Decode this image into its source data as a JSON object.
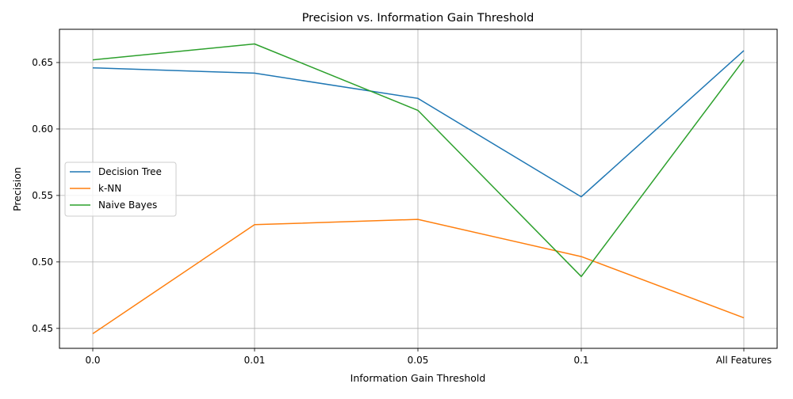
{
  "chart_data": {
    "type": "line",
    "title": "Precision vs. Information Gain Threshold",
    "xlabel": "Information Gain Threshold",
    "ylabel": "Precision",
    "categories": [
      "0.0",
      "0.01",
      "0.05",
      "0.1",
      "All Features"
    ],
    "ylim": [
      0.435,
      0.675
    ],
    "yticks": [
      "0.45",
      "0.50",
      "0.55",
      "0.60",
      "0.65"
    ],
    "ytick_values": [
      0.45,
      0.5,
      0.55,
      0.6,
      0.65
    ],
    "grid": true,
    "legend_position": "center-left",
    "series": [
      {
        "name": "Decision Tree",
        "color": "#1f77b4",
        "values": [
          0.646,
          0.642,
          0.623,
          0.549,
          0.659
        ]
      },
      {
        "name": "k-NN",
        "color": "#ff7f0e",
        "values": [
          0.446,
          0.528,
          0.532,
          0.504,
          0.458
        ]
      },
      {
        "name": "Naive Bayes",
        "color": "#2ca02c",
        "values": [
          0.652,
          0.664,
          0.614,
          0.489,
          0.652
        ]
      }
    ]
  }
}
